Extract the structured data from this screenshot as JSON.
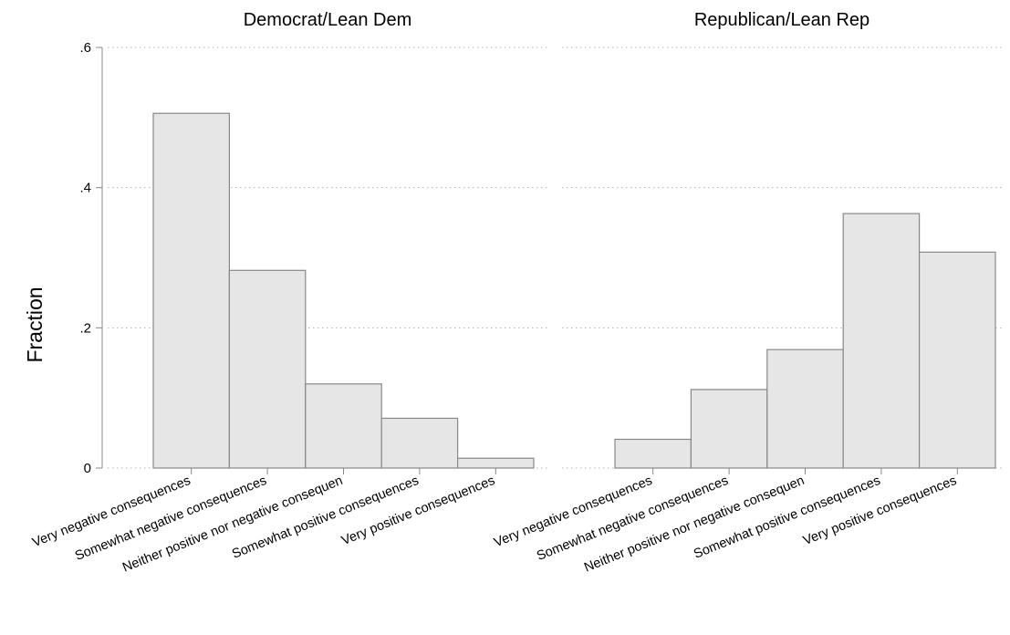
{
  "chart_data": {
    "type": "bar",
    "ylabel": "Fraction",
    "ylim": [
      0,
      0.6
    ],
    "yticks": [
      {
        "value": 0,
        "label": "0"
      },
      {
        "value": 0.2,
        "label": ".2"
      },
      {
        "value": 0.4,
        "label": ".4"
      },
      {
        "value": 0.6,
        "label": ".6"
      }
    ],
    "grid": true,
    "categories": [
      "Very negative consequences",
      "Somewhat negative consequences",
      "Neither positive nor negative consequen",
      "Somewhat positive consequences",
      "Very positive consequences"
    ],
    "panels": [
      {
        "title": "Democrat/Lean Dem",
        "values": [
          0.506,
          0.282,
          0.12,
          0.071,
          0.014
        ]
      },
      {
        "title": "Republican/Lean Rep",
        "values": [
          0.041,
          0.112,
          0.169,
          0.363,
          0.308
        ]
      }
    ],
    "colors": {
      "bar_fill": "#e6e6e6",
      "bar_stroke": "#888888",
      "grid": "#b4b4b4",
      "axis": "#888888"
    }
  }
}
